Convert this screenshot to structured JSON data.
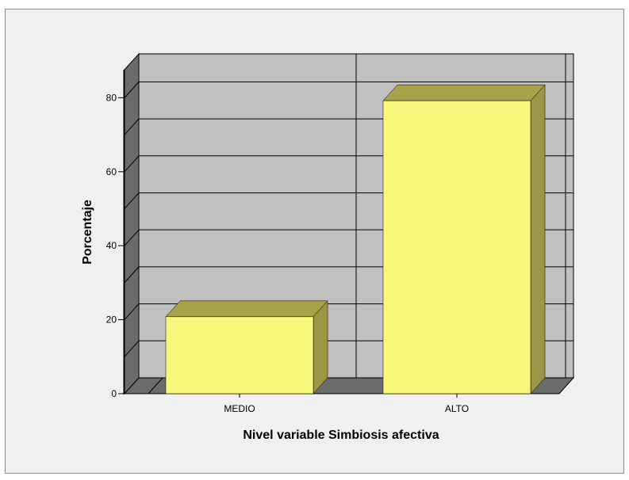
{
  "chart_data": {
    "type": "bar",
    "categories": [
      "MEDIO",
      "ALTO"
    ],
    "values": [
      20.8,
      79.2
    ],
    "xlabel": "Nivel variable Simbiosis afectiva",
    "ylabel": "Porcentaje",
    "yticks": [
      0,
      20,
      40,
      60,
      80
    ],
    "ylim": [
      0,
      88
    ],
    "grid": true,
    "style": "3d",
    "colors": {
      "bar_front": "#f7f77c",
      "bar_top": "#a5a24c",
      "bar_side": "#9a9746",
      "plot_back": "#c0c0c0",
      "plot_left_wall": "#6b6b6b",
      "plot_floor": "#6b6b6b",
      "frame_bg": "#f0f0f0"
    }
  }
}
